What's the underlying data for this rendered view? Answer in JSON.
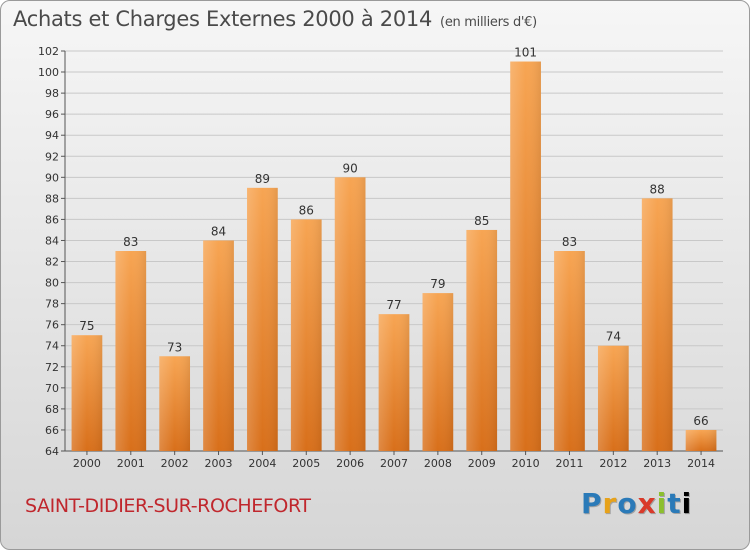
{
  "title": "Achats et Charges Externes 2000 à 2014",
  "subtitle": "(en milliers d'€)",
  "city": "SAINT-DIDIER-SUR-ROCHEFORT",
  "logo": "Proxiti",
  "colors": {
    "bar_light": "#f7a553",
    "bar_dark": "#d86f1a",
    "city": "#c0272d"
  },
  "chart_data": {
    "type": "bar",
    "title": "Achats et Charges Externes 2000 à 2014",
    "subtitle": "(en milliers d'€)",
    "categories": [
      "2000",
      "2001",
      "2002",
      "2003",
      "2004",
      "2005",
      "2006",
      "2007",
      "2008",
      "2009",
      "2010",
      "2011",
      "2012",
      "2013",
      "2014"
    ],
    "values": [
      75,
      83,
      73,
      84,
      89,
      86,
      90,
      77,
      79,
      85,
      101,
      83,
      74,
      88,
      66
    ],
    "ylim": [
      64,
      102
    ],
    "yticks": [
      64,
      66,
      68,
      70,
      72,
      74,
      76,
      78,
      80,
      82,
      84,
      86,
      88,
      90,
      92,
      94,
      96,
      98,
      100,
      102
    ],
    "grid": true,
    "legend": "none"
  }
}
